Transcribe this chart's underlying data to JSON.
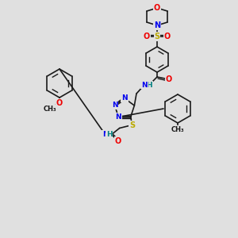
{
  "bg_color": "#e0e0e0",
  "bond_color": "#1a1a1a",
  "colors": {
    "N": "#0000ee",
    "O": "#ee0000",
    "S": "#bbaa00",
    "H": "#008080",
    "C": "#1a1a1a"
  }
}
